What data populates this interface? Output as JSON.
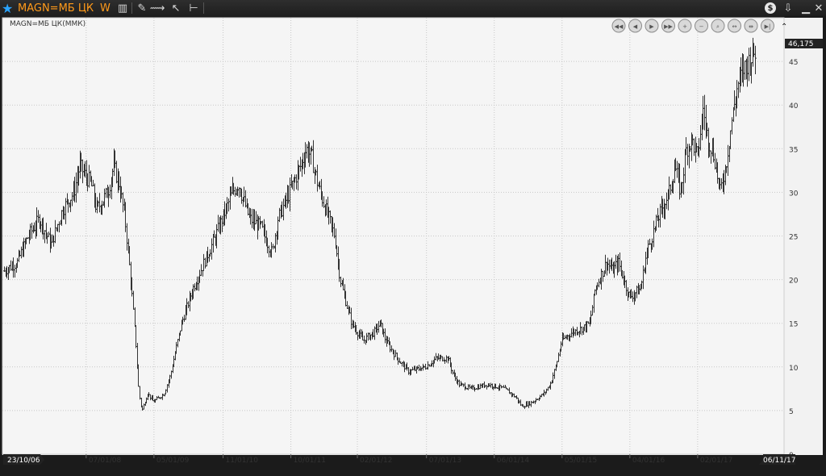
{
  "toolbar": {
    "ric": "MAGN=МБ ЦК",
    "interval": "W",
    "icons": [
      "bar-chart-icon",
      "pencil-icon",
      "crosshair-icon",
      "pointer-icon",
      "horizontal-line-icon"
    ],
    "right_icons": [
      "dollar-icon",
      "download-icon",
      "minimize-icon",
      "close-icon"
    ]
  },
  "chart_title": "MAGN=МБ ЦК(ММК)",
  "nav_buttons": [
    "first-icon",
    "back-icon",
    "forward-icon",
    "last-icon",
    "zoom-in-icon",
    "zoom-out-icon",
    "zoom-fit-icon",
    "pan-icon",
    "shrink-icon",
    "end-icon",
    "collapse-icon"
  ],
  "last_value": "46,175",
  "chart_data": {
    "type": "bar",
    "style": "ohlc",
    "title": "MAGN=МБ ЦК(ММК)",
    "ylim": [
      0,
      50
    ],
    "yticks": [
      "0",
      "5",
      "10",
      "15",
      "20",
      "25",
      "30",
      "35",
      "40",
      "45"
    ],
    "xticks": [
      "07/01/08",
      "05/01/09",
      "11/01/10",
      "10/01/11",
      "02/01/12",
      "07/01/13",
      "06/01/14",
      "05/01/15",
      "04/01/16",
      "02/01/17"
    ],
    "start_date": "23/10/06",
    "end_date": "06/11/17",
    "grid": true,
    "series": [
      {
        "path": [
          [
            "23/10/06",
            21
          ],
          [
            "01/01/07",
            22
          ],
          [
            "01/03/07",
            25
          ],
          [
            "01/05/07",
            27
          ],
          [
            "01/07/07",
            24
          ],
          [
            "01/09/07",
            28
          ],
          [
            "01/11/07",
            30
          ],
          [
            "01/12/07",
            33
          ],
          [
            "01/02/08",
            31
          ],
          [
            "01/03/08",
            28
          ],
          [
            "01/05/08",
            30
          ],
          [
            "01/06/08",
            33
          ],
          [
            "01/07/08",
            31
          ],
          [
            "01/08/08",
            27
          ],
          [
            "01/09/08",
            20
          ],
          [
            "01/10/08",
            12
          ],
          [
            "15/10/08",
            7
          ],
          [
            "01/11/08",
            5
          ],
          [
            "01/12/08",
            7
          ],
          [
            "01/01/09",
            6
          ],
          [
            "01/03/09",
            7
          ],
          [
            "01/04/09",
            9
          ],
          [
            "01/05/09",
            12
          ],
          [
            "01/06/09",
            15
          ],
          [
            "01/08/09",
            19
          ],
          [
            "01/10/09",
            22
          ],
          [
            "01/12/09",
            25
          ],
          [
            "01/03/10",
            30
          ],
          [
            "01/04/10",
            31
          ],
          [
            "01/06/10",
            27
          ],
          [
            "01/08/10",
            26
          ],
          [
            "01/10/10",
            23
          ],
          [
            "01/11/10",
            27
          ],
          [
            "01/01/11",
            30
          ],
          [
            "01/03/11",
            33
          ],
          [
            "01/04/11",
            35
          ],
          [
            "01/05/11",
            34
          ],
          [
            "01/06/11",
            31
          ],
          [
            "01/07/11",
            29
          ],
          [
            "01/09/11",
            25
          ],
          [
            "01/10/11",
            20
          ],
          [
            "01/12/11",
            15
          ],
          [
            "01/02/12",
            13
          ],
          [
            "01/04/12",
            14
          ],
          [
            "01/05/12",
            15
          ],
          [
            "01/06/12",
            13
          ],
          [
            "01/08/12",
            11
          ],
          [
            "01/10/12",
            9.5
          ],
          [
            "01/01/13",
            10
          ],
          [
            "01/03/13",
            11
          ],
          [
            "01/05/13",
            11
          ],
          [
            "01/06/13",
            9
          ],
          [
            "01/07/13",
            8
          ],
          [
            "01/09/13",
            7.5
          ],
          [
            "01/12/13",
            8
          ],
          [
            "01/03/14",
            7.5
          ],
          [
            "01/05/14",
            6.5
          ],
          [
            "01/06/14",
            5.5
          ],
          [
            "01/08/14",
            6
          ],
          [
            "01/10/14",
            7
          ],
          [
            "01/11/14",
            8
          ],
          [
            "01/12/14",
            10
          ],
          [
            "01/01/15",
            13
          ],
          [
            "01/03/15",
            14
          ],
          [
            "01/05/15",
            14.5
          ],
          [
            "01/06/15",
            15
          ],
          [
            "01/07/15",
            19
          ],
          [
            "01/09/15",
            22
          ],
          [
            "01/10/15",
            21
          ],
          [
            "01/11/15",
            22
          ],
          [
            "01/12/15",
            20
          ],
          [
            "01/01/16",
            18
          ],
          [
            "01/03/16",
            19
          ],
          [
            "01/04/16",
            23
          ],
          [
            "01/06/16",
            27
          ],
          [
            "01/08/16",
            30
          ],
          [
            "01/09/16",
            33
          ],
          [
            "01/10/16",
            30
          ],
          [
            "01/11/16",
            35
          ],
          [
            "01/12/16",
            36
          ],
          [
            "01/01/17",
            34
          ],
          [
            "01/02/17",
            40
          ],
          [
            "15/02/17",
            37
          ],
          [
            "01/04/17",
            34
          ],
          [
            "01/05/17",
            30
          ],
          [
            "01/06/17",
            33
          ],
          [
            "01/07/17",
            38
          ],
          [
            "01/08/17",
            42
          ],
          [
            "01/09/17",
            44
          ],
          [
            "01/10/17",
            45
          ],
          [
            "06/11/17",
            46.175
          ]
        ]
      }
    ]
  }
}
